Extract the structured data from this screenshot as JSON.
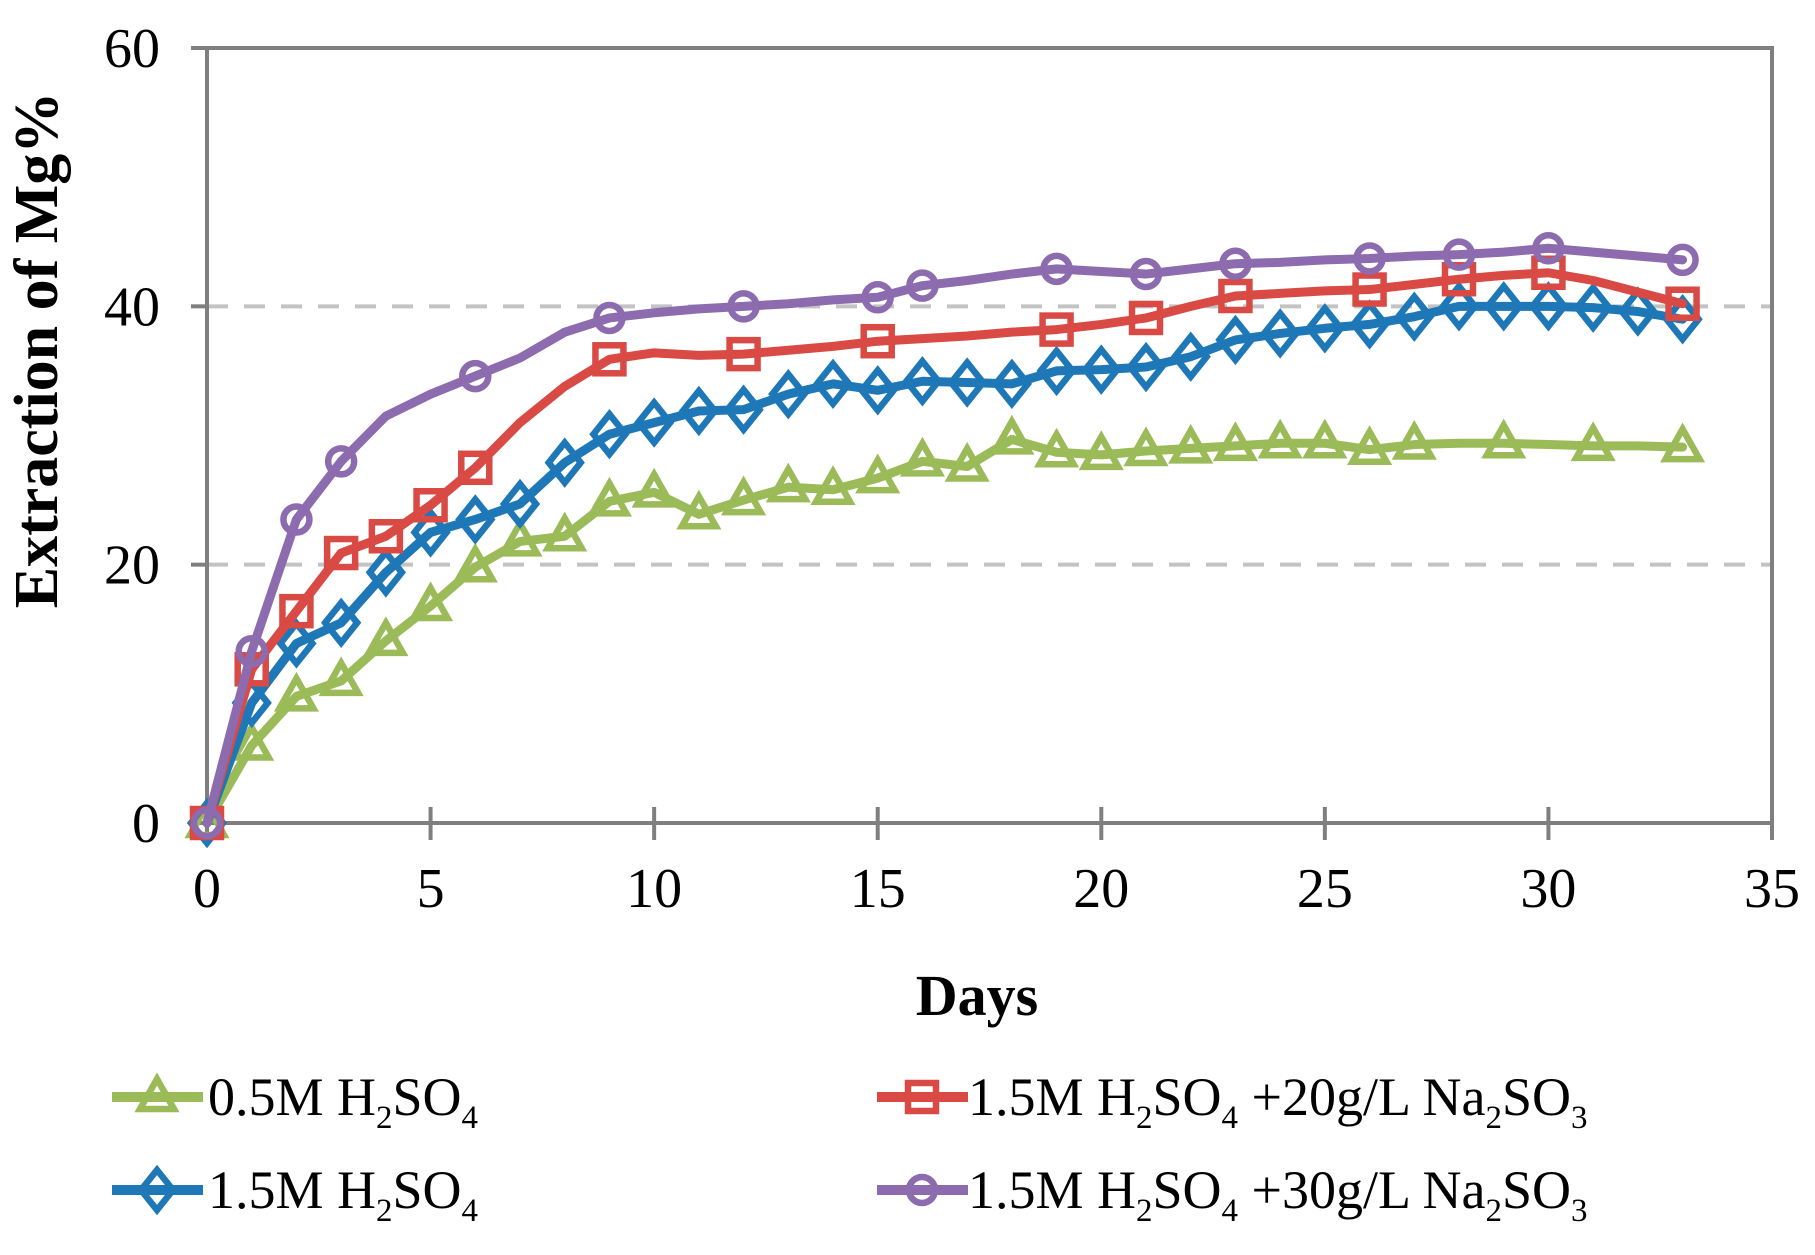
{
  "figure": {
    "kind": "line-chart screenshot",
    "background": "#FFFFFF"
  },
  "chart_data": {
    "type": "line",
    "title": "",
    "xlabel": "Days",
    "ylabel": "Extraction of Mg%",
    "xlim": [
      0,
      35
    ],
    "ylim": [
      0,
      60
    ],
    "xticks": [
      0,
      5,
      10,
      15,
      20,
      25,
      30,
      35
    ],
    "yticks": [
      0,
      20,
      40,
      60
    ],
    "grid_y": [
      20,
      40
    ],
    "grid_style": "dashed horizontal gridlines at y=20 and y=40",
    "legend_position": "bottom, two columns",
    "colors": {
      "axis": "#7F7F7F",
      "gridline": "#C3C3C3",
      "text": "#000000",
      "background": "#FFFFFF"
    },
    "x": [
      0,
      1,
      2,
      3,
      4,
      5,
      6,
      7,
      8,
      9,
      10,
      11,
      12,
      13,
      14,
      15,
      16,
      17,
      18,
      19,
      20,
      21,
      22,
      23,
      24,
      25,
      26,
      27,
      28,
      29,
      30,
      31,
      32,
      33
    ],
    "series": [
      {
        "name": "0.5M H₂SO₄",
        "color": "#9BBB59",
        "marker": "triangle",
        "values": [
          0,
          6.0,
          9.8,
          11.0,
          14.1,
          16.8,
          19.8,
          21.8,
          22.2,
          24.9,
          25.6,
          23.9,
          25.0,
          26.0,
          25.8,
          26.7,
          28.0,
          27.6,
          29.7,
          28.7,
          28.5,
          28.8,
          29.0,
          29.2,
          29.4,
          29.4,
          28.9,
          29.3,
          29.4,
          29.4,
          29.3,
          29.2,
          29.2,
          29.1
        ],
        "marker_days": [
          0,
          1,
          2,
          3,
          4,
          5,
          6,
          7,
          8,
          9,
          10,
          11,
          12,
          13,
          14,
          15,
          16,
          17,
          18,
          19,
          20,
          21,
          22,
          23,
          24,
          25,
          26,
          27,
          29,
          31,
          33
        ]
      },
      {
        "name": "1.5M H₂SO₄",
        "color": "#1E78B8",
        "marker": "diamond",
        "values": [
          0,
          9.3,
          13.9,
          15.5,
          19.4,
          22.5,
          23.5,
          24.7,
          27.9,
          30.1,
          31.0,
          31.9,
          32.0,
          33.2,
          34.0,
          33.5,
          34.2,
          34.1,
          34.0,
          35.0,
          35.1,
          35.3,
          36.1,
          37.4,
          37.9,
          38.3,
          38.6,
          39.2,
          40.0,
          40.0,
          40.0,
          39.9,
          39.6,
          39.0
        ],
        "marker_days": [
          0,
          1,
          2,
          3,
          4,
          5,
          6,
          7,
          8,
          9,
          10,
          11,
          12,
          13,
          14,
          15,
          16,
          17,
          18,
          19,
          20,
          21,
          22,
          23,
          24,
          25,
          26,
          27,
          28,
          29,
          30,
          31,
          32,
          33
        ]
      },
      {
        "name": "1.5M H₂SO₄ +20g/L Na₂SO₃",
        "color": "#D94A45",
        "marker": "square",
        "values": [
          0,
          11.9,
          16.4,
          20.9,
          22.2,
          24.6,
          27.5,
          31.0,
          33.8,
          35.9,
          36.4,
          36.2,
          36.3,
          36.6,
          36.9,
          37.3,
          37.5,
          37.7,
          38.0,
          38.2,
          38.6,
          39.1,
          40.0,
          40.8,
          41.0,
          41.2,
          41.3,
          41.7,
          42.1,
          42.4,
          42.6,
          42.0,
          41.1,
          40.2
        ],
        "marker_days": [
          0,
          1,
          2,
          3,
          4,
          5,
          6,
          9,
          12,
          15,
          19,
          21,
          23,
          26,
          28,
          30,
          33
        ]
      },
      {
        "name": "1.5M H₂SO₄ +30g/L Na₂SO₃",
        "color": "#8C6BAF",
        "marker": "circle",
        "values": [
          0,
          13.3,
          23.5,
          28.0,
          31.5,
          33.2,
          34.6,
          36.0,
          38.0,
          39.1,
          39.5,
          39.8,
          40.0,
          40.2,
          40.5,
          40.7,
          41.6,
          42.0,
          42.5,
          42.9,
          42.7,
          42.5,
          42.9,
          43.3,
          43.4,
          43.6,
          43.7,
          43.9,
          44.0,
          44.2,
          44.5,
          44.2,
          43.9,
          43.6
        ],
        "marker_days": [
          0,
          1,
          2,
          3,
          6,
          9,
          12,
          15,
          16,
          19,
          21,
          23,
          26,
          28,
          30,
          33
        ]
      }
    ]
  }
}
